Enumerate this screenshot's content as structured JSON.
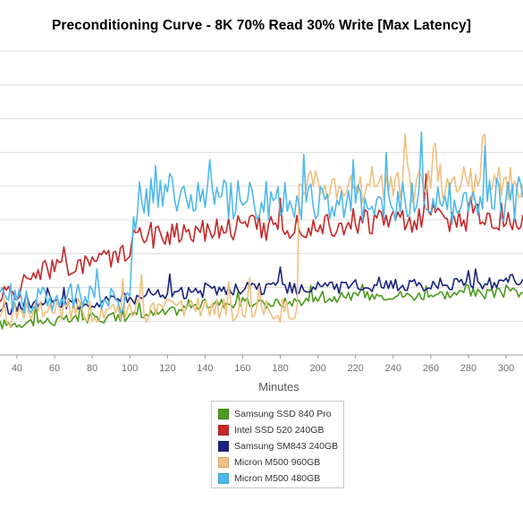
{
  "title": "Preconditioning Curve - 8K 70% Read 30% Write [Max Latency]",
  "chart_data": {
    "type": "line",
    "title": "Preconditioning Curve - 8K 70% Read 30% Write [Max Latency]",
    "xlabel": "Minutes",
    "ylabel": "",
    "xlim": [
      31,
      309
    ],
    "ylim": [
      0,
      9
    ],
    "x_ticks": [
      40,
      60,
      80,
      100,
      120,
      140,
      160,
      180,
      200,
      220,
      240,
      260,
      280,
      300
    ],
    "y_grid": [
      1,
      2,
      3,
      4,
      5,
      6,
      7,
      8,
      9
    ],
    "grid": "horizontal",
    "legend_position": "bottom",
    "series": [
      {
        "name": "Samsung SSD 840 Pro",
        "color": "#4c9a1e",
        "x": [
          31,
          40,
          50,
          60,
          70,
          80,
          90,
          100,
          110,
          120,
          130,
          140,
          150,
          160,
          170,
          180,
          190,
          200,
          210,
          220,
          230,
          240,
          250,
          260,
          270,
          280,
          290,
          300,
          309
        ],
        "y": [
          0.9,
          0.95,
          1.0,
          1.0,
          1.05,
          1.1,
          1.1,
          1.15,
          1.2,
          1.25,
          1.4,
          1.5,
          1.55,
          1.55,
          1.5,
          1.55,
          1.6,
          1.65,
          1.7,
          1.75,
          1.75,
          1.8,
          1.75,
          1.8,
          1.8,
          1.85,
          1.8,
          1.85,
          1.85
        ]
      },
      {
        "name": "Intel SSD 520 240GB",
        "color": "#c62828",
        "x": [
          31,
          40,
          45,
          50,
          60,
          70,
          80,
          90,
          95,
          100,
          103,
          110,
          120,
          130,
          140,
          150,
          160,
          170,
          180,
          190,
          200,
          210,
          220,
          230,
          240,
          250,
          260,
          270,
          280,
          290,
          300,
          309
        ],
        "y": [
          1.8,
          1.85,
          2.2,
          2.5,
          2.55,
          2.55,
          2.85,
          2.85,
          2.95,
          3.0,
          3.45,
          3.55,
          3.6,
          3.7,
          3.75,
          3.8,
          3.8,
          3.8,
          3.85,
          3.85,
          3.9,
          3.9,
          3.95,
          3.95,
          4.0,
          4.0,
          4.05,
          4.05,
          4.05,
          4.1,
          4.1,
          4.15
        ]
      },
      {
        "name": "Samsung SM843 240GB",
        "color": "#1a237e",
        "x": [
          31,
          40,
          50,
          60,
          70,
          80,
          90,
          100,
          110,
          120,
          130,
          140,
          150,
          160,
          170,
          180,
          190,
          200,
          210,
          220,
          230,
          240,
          250,
          260,
          270,
          280,
          290,
          300,
          309
        ],
        "y": [
          1.35,
          1.4,
          1.45,
          1.5,
          1.5,
          1.55,
          1.6,
          1.65,
          1.75,
          1.8,
          1.85,
          1.85,
          1.9,
          1.95,
          1.95,
          2.0,
          1.95,
          2.0,
          2.0,
          2.05,
          2.05,
          2.05,
          2.1,
          2.05,
          2.1,
          2.15,
          2.1,
          2.2,
          2.25
        ]
      },
      {
        "name": "Micron M500 960GB",
        "color": "#f0c080",
        "x": [
          31,
          40,
          50,
          60,
          70,
          80,
          90,
          100,
          110,
          120,
          130,
          140,
          150,
          160,
          170,
          180,
          189,
          190,
          195,
          200,
          210,
          220,
          230,
          240,
          250,
          260,
          270,
          280,
          290,
          300,
          309
        ],
        "y": [
          1.1,
          1.2,
          1.25,
          1.3,
          1.35,
          1.3,
          1.35,
          1.35,
          1.3,
          1.3,
          1.35,
          1.4,
          1.35,
          1.35,
          1.3,
          1.3,
          1.35,
          4.6,
          5.2,
          4.9,
          4.95,
          5.0,
          5.0,
          5.0,
          5.0,
          5.05,
          5.1,
          5.1,
          5.05,
          5.1,
          5.1
        ]
      },
      {
        "name": "Micron M500 480GB",
        "color": "#4fb8ec",
        "x": [
          31,
          40,
          50,
          60,
          70,
          80,
          90,
          100,
          102,
          104,
          110,
          120,
          130,
          140,
          150,
          160,
          170,
          180,
          190,
          200,
          210,
          220,
          230,
          240,
          250,
          260,
          270,
          280,
          290,
          300,
          309
        ],
        "y": [
          1.6,
          1.6,
          1.55,
          1.6,
          1.7,
          1.65,
          1.6,
          1.6,
          3.9,
          4.6,
          4.75,
          4.75,
          4.7,
          4.6,
          4.55,
          4.5,
          4.6,
          4.6,
          4.55,
          4.5,
          4.55,
          4.5,
          4.55,
          4.5,
          4.5,
          4.55,
          4.5,
          4.55,
          4.6,
          4.6,
          4.65
        ]
      }
    ]
  }
}
